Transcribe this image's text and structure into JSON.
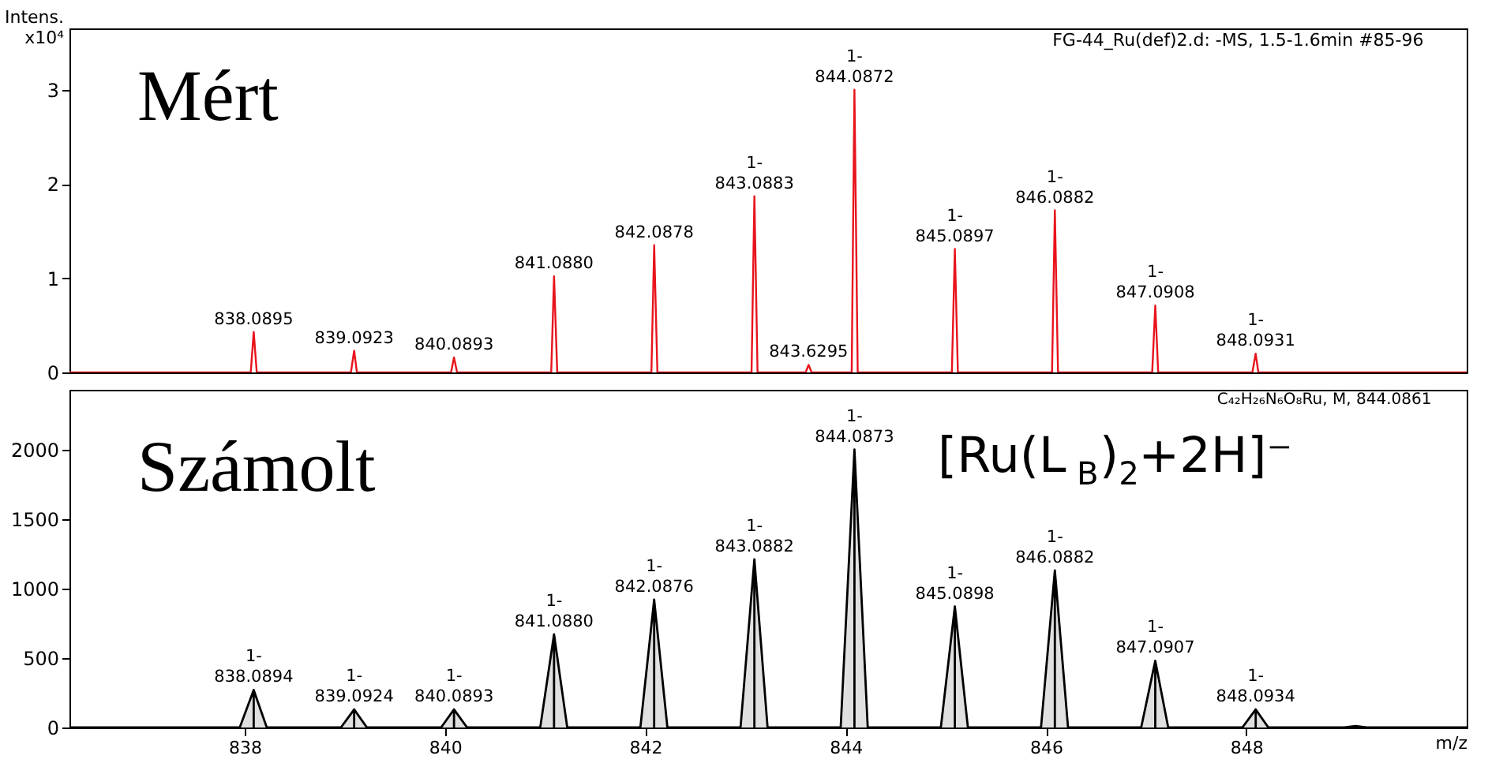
{
  "chart_data": [
    {
      "type": "line",
      "ylabel": "Intens.\nx10⁴",
      "xlim": [
        836.25,
        850.2
      ],
      "ylim": [
        0,
        3.65
      ],
      "yticks": [
        0,
        1,
        2,
        3
      ],
      "tick_labels": "y",
      "grid": false,
      "line_style": "solid",
      "marker": "none",
      "series": [
        {
          "color": "#e8141c",
          "x": [
            836.25,
            838.06,
            838.0895,
            838.12,
            839.06,
            839.0923,
            839.12,
            840.06,
            840.0893,
            840.12,
            841.06,
            841.088,
            841.12,
            842.06,
            842.0878,
            842.12,
            843.06,
            843.0883,
            843.12,
            843.6,
            843.6295,
            843.66,
            844.06,
            844.0872,
            844.12,
            845.06,
            845.0897,
            845.12,
            846.06,
            846.0882,
            846.12,
            847.06,
            847.0908,
            847.12,
            848.06,
            848.0931,
            848.12,
            850.2
          ],
          "values": [
            0,
            0,
            0.43,
            0,
            0,
            0.23,
            0,
            0,
            0.16,
            0,
            0,
            1.02,
            0,
            0,
            1.35,
            0,
            0,
            1.87,
            0,
            0,
            0.08,
            0,
            0,
            3.0,
            0,
            0,
            1.31,
            0,
            0,
            1.72,
            0,
            0,
            0.71,
            0,
            0,
            0.2,
            0,
            0
          ]
        }
      ],
      "annotations": [
        "Mért",
        "FG-44_Ru(def)2.d: -MS, 1.5-1.6min #85-96",
        {
          "text": "838.0895",
          "x": 838.0895,
          "y": 0.43
        },
        {
          "text": "839.0923",
          "x": 839.0923,
          "y": 0.23
        },
        {
          "text": "840.0893",
          "x": 840.0893,
          "y": 0.16
        },
        {
          "text": "841.0880",
          "x": 841.088,
          "y": 1.02
        },
        {
          "text": "842.0878",
          "x": 842.0878,
          "y": 1.35
        },
        {
          "text": "1-\n843.0883",
          "x": 843.0883,
          "y": 1.87
        },
        {
          "text": "843.6295",
          "x": 843.6295,
          "y": 0.08
        },
        {
          "text": "1-\n844.0872",
          "x": 844.0872,
          "y": 3.0
        },
        {
          "text": "1-\n845.0897",
          "x": 845.0897,
          "y": 1.31
        },
        {
          "text": "1-\n846.0882",
          "x": 846.0882,
          "y": 1.72
        },
        {
          "text": "1-\n847.0908",
          "x": 847.0908,
          "y": 0.71
        },
        {
          "text": "1-\n848.0931",
          "x": 848.0931,
          "y": 0.2
        }
      ]
    },
    {
      "type": "area",
      "xlabel": "m/z",
      "xlim": [
        836.25,
        850.2
      ],
      "xticks": [
        838,
        840,
        842,
        844,
        846,
        848
      ],
      "ylim": [
        0,
        2430
      ],
      "yticks": [
        0,
        500,
        1000,
        1500,
        2000
      ],
      "grid": false,
      "line_style": "solid",
      "marker": "none",
      "series": [
        {
          "color": "#000000",
          "x": [
            836.25,
            837.95,
            838.0894,
            838.22,
            838.96,
            839.0924,
            839.22,
            839.96,
            840.0893,
            840.22,
            840.95,
            841.088,
            841.22,
            841.95,
            842.0876,
            842.22,
            842.95,
            843.0882,
            843.22,
            843.95,
            844.0873,
            844.22,
            844.95,
            845.0898,
            845.22,
            845.95,
            846.0882,
            846.22,
            846.95,
            847.0907,
            847.22,
            847.96,
            848.0934,
            848.22,
            848.98,
            849.09,
            849.2,
            850.2
          ],
          "values": [
            0,
            0,
            270,
            0,
            0,
            130,
            0,
            0,
            130,
            0,
            0,
            670,
            0,
            0,
            920,
            0,
            0,
            1210,
            0,
            0,
            2000,
            0,
            0,
            870,
            0,
            0,
            1130,
            0,
            0,
            480,
            0,
            0,
            130,
            0,
            0,
            10,
            0,
            0
          ]
        }
      ],
      "annotations": [
        "Számolt",
        "[Ru(L$_{B}$)$_{2}$+2H]⁻",
        "C₄₂H₂₆N₆O₈Ru, M, 844.0861",
        {
          "text": "1-\n838.0894",
          "x": 838.0894,
          "y": 270
        },
        {
          "text": "1-\n839.0924",
          "x": 839.0924,
          "y": 130
        },
        {
          "text": "1-\n840.0893",
          "x": 840.0893,
          "y": 130
        },
        {
          "text": "1-\n841.0880",
          "x": 841.088,
          "y": 670
        },
        {
          "text": "1-\n842.0876",
          "x": 842.0876,
          "y": 920
        },
        {
          "text": "1-\n843.0882",
          "x": 843.0882,
          "y": 1210
        },
        {
          "text": "1-\n844.0873",
          "x": 844.0873,
          "y": 2000
        },
        {
          "text": "1-\n845.0898",
          "x": 845.0898,
          "y": 870
        },
        {
          "text": "1-\n846.0882",
          "x": 846.0882,
          "y": 1130
        },
        {
          "text": "1-\n847.0907",
          "x": 847.0907,
          "y": 480
        },
        {
          "text": "1-\n848.0934",
          "x": 848.0934,
          "y": 130
        }
      ]
    }
  ]
}
